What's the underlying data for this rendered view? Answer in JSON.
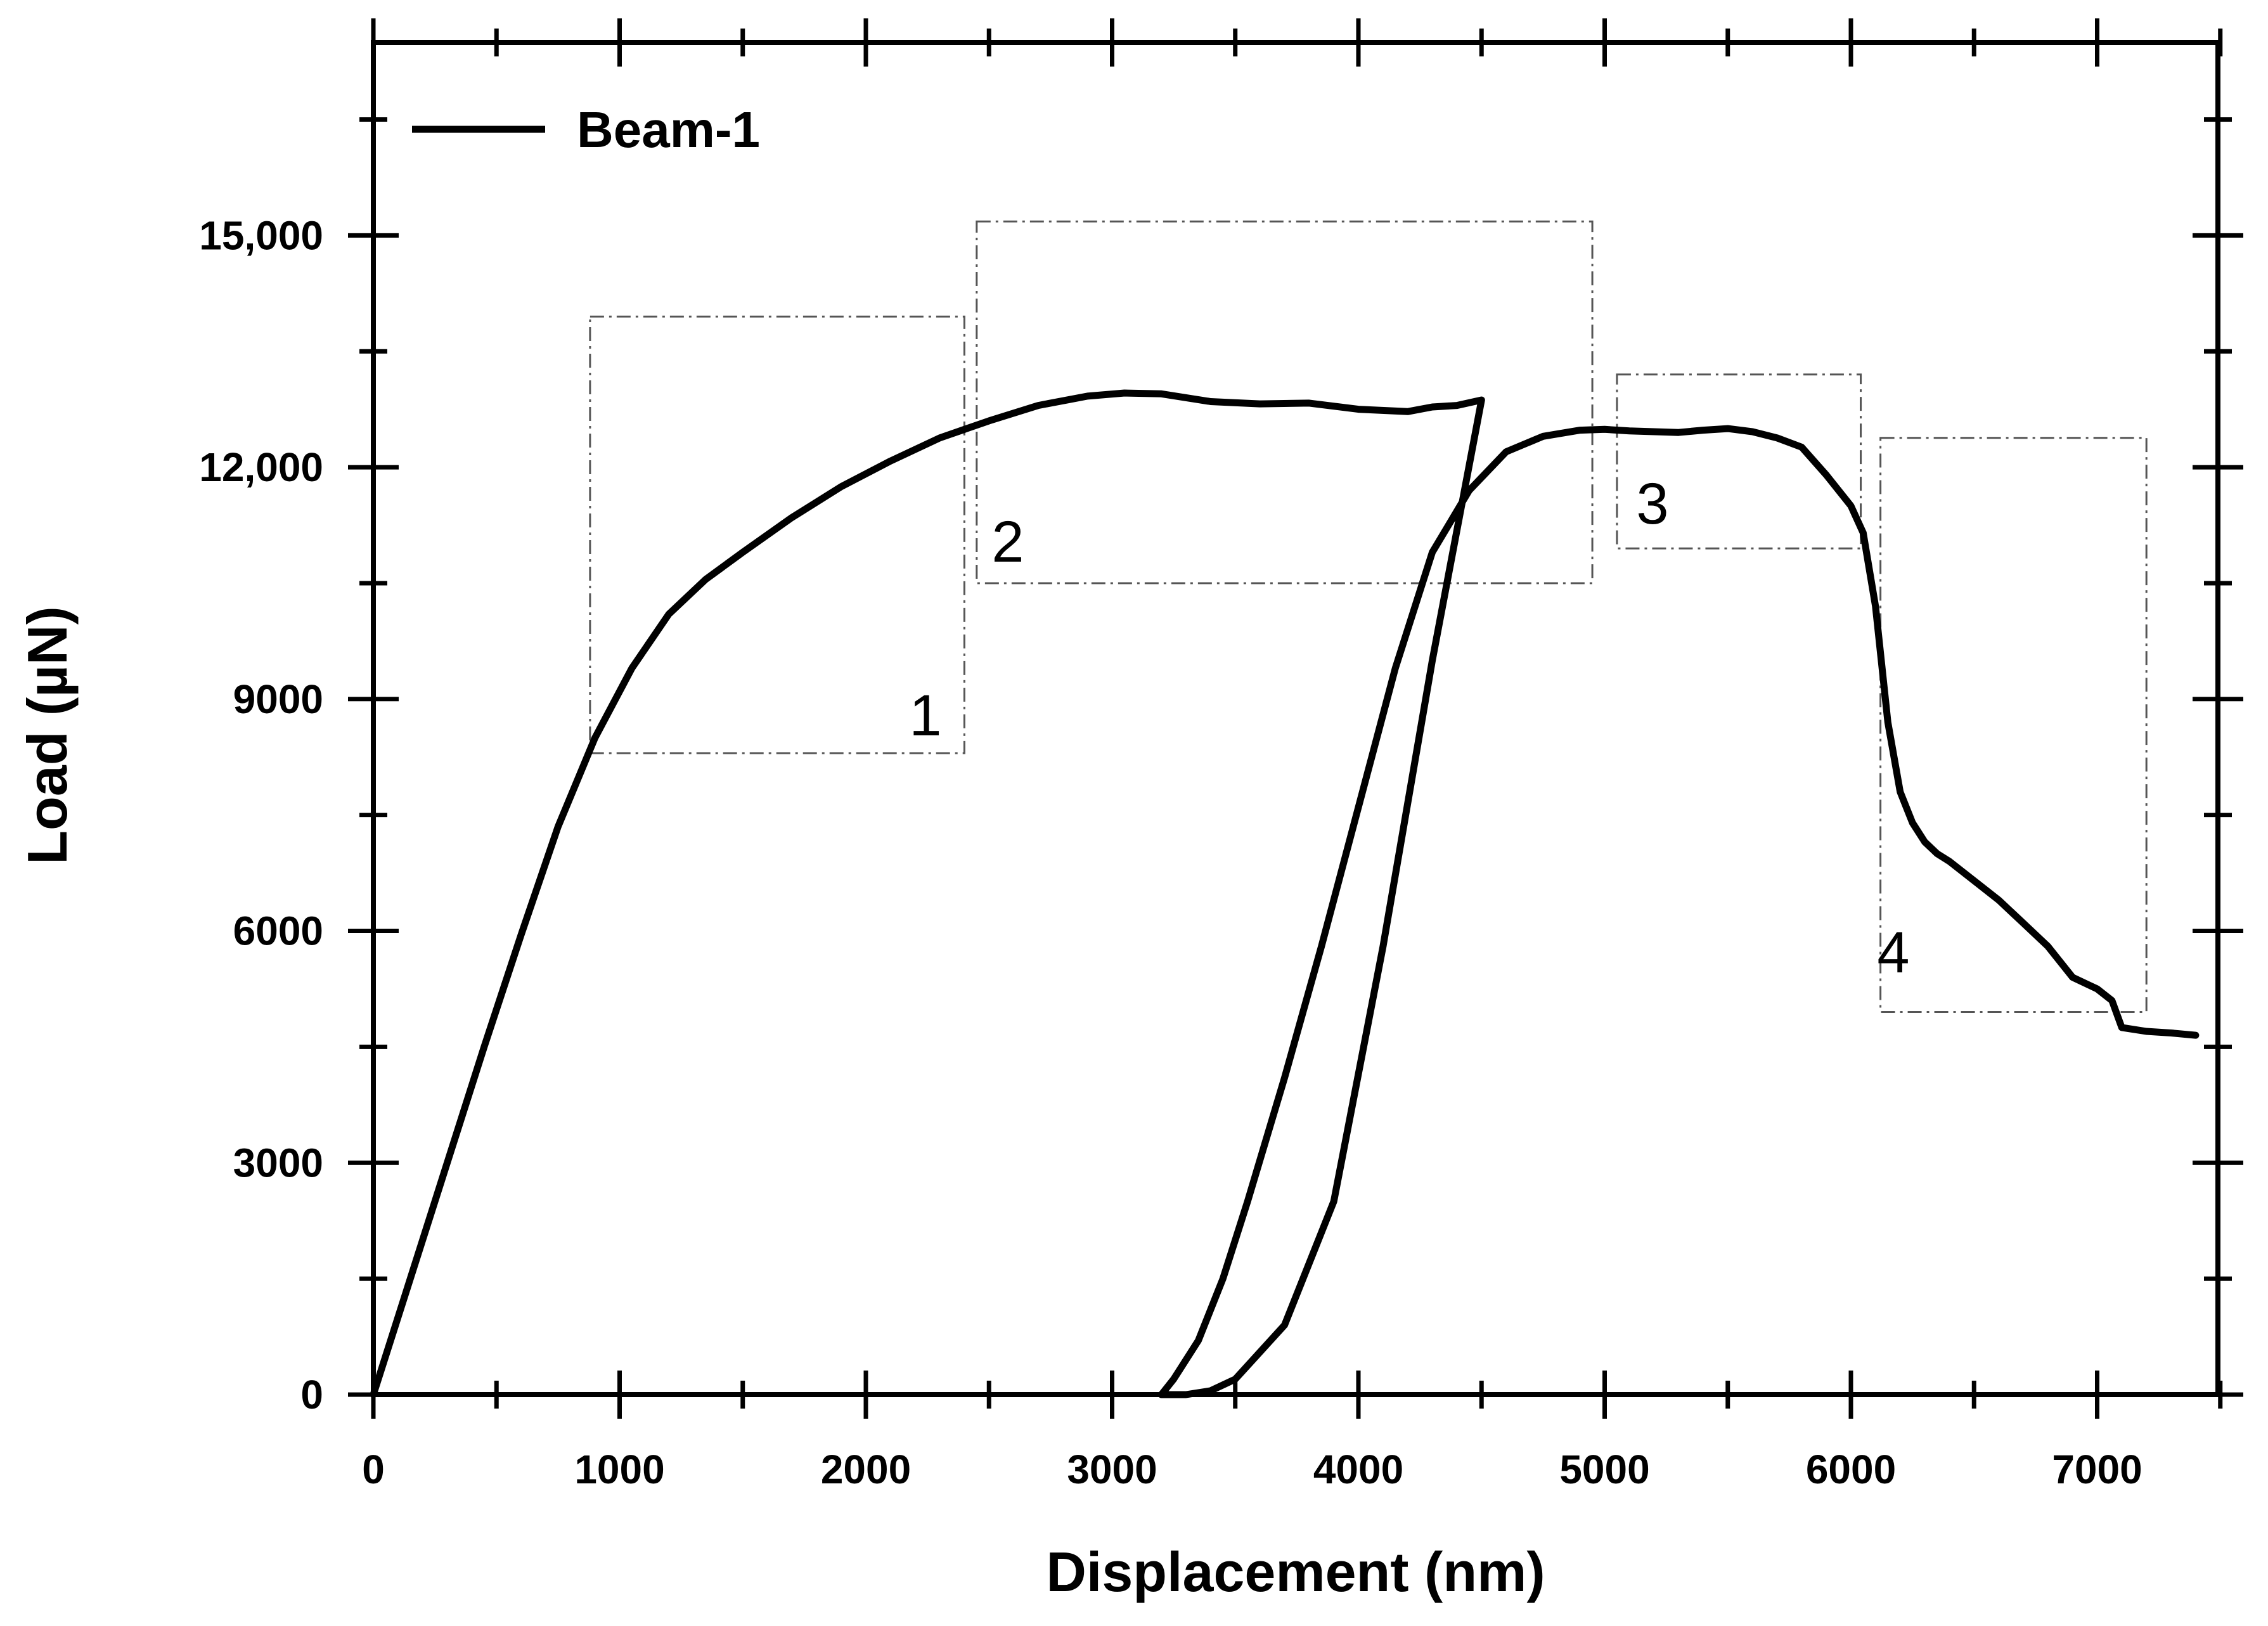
{
  "chart_data": {
    "type": "line",
    "xlabel": "Displacement (nm)",
    "ylabel": "Load (µN)",
    "xlim": [
      0,
      7600
    ],
    "ylim": [
      0,
      17500
    ],
    "x_ticks": [
      0,
      1000,
      2000,
      3000,
      4000,
      5000,
      6000,
      7000
    ],
    "x_tick_labels": [
      "0",
      "1000",
      "2000",
      "3000",
      "4000",
      "5000",
      "6000",
      "7000"
    ],
    "y_ticks": [
      0,
      3000,
      6000,
      9000,
      12000,
      15000
    ],
    "y_tick_labels": [
      "0",
      "3000",
      "6000",
      "9000",
      "12,000",
      "15,000"
    ],
    "legend": {
      "position": "top-left",
      "entries": [
        "Beam-1"
      ]
    },
    "series": [
      {
        "name": "Beam-1",
        "x": [
          0,
          150,
          300,
          450,
          600,
          750,
          900,
          1050,
          1200,
          1350,
          1500,
          1700,
          1900,
          2100,
          2300,
          2500,
          2700,
          2900,
          3050,
          3200,
          3400,
          3600,
          3800,
          4000,
          4200,
          4300,
          4400,
          4500,
          4300,
          4100,
          3900,
          3700,
          3500,
          3400,
          3300,
          3200,
          3250,
          3350,
          3450,
          3550,
          3700,
          3850,
          4000,
          4150,
          4300,
          4450,
          4600,
          4750,
          4900,
          5000,
          5100,
          5300,
          5400,
          5500,
          5600,
          5700,
          5800,
          5900,
          6000,
          6050,
          6100,
          6150,
          6200,
          6250,
          6300,
          6350,
          6400,
          6500,
          6600,
          6700,
          6800,
          6900,
          7000,
          7060,
          7100,
          7200,
          7300,
          7400
        ],
        "y": [
          0,
          1500,
          3000,
          4500,
          5950,
          7350,
          8500,
          9400,
          10100,
          10550,
          10900,
          11350,
          11750,
          12080,
          12380,
          12600,
          12800,
          12920,
          12960,
          12950,
          12850,
          12820,
          12830,
          12750,
          12720,
          12780,
          12800,
          12870,
          9500,
          5800,
          2500,
          900,
          200,
          50,
          0,
          0,
          200,
          700,
          1500,
          2500,
          4100,
          5800,
          7600,
          9400,
          10900,
          11700,
          12200,
          12400,
          12480,
          12490,
          12470,
          12450,
          12480,
          12500,
          12460,
          12380,
          12260,
          11900,
          11500,
          11150,
          10200,
          8700,
          7800,
          7400,
          7150,
          7000,
          6900,
          6650,
          6400,
          6100,
          5800,
          5400,
          5250,
          5100,
          4750,
          4700,
          4680,
          4650
        ]
      }
    ],
    "annotations": [
      {
        "label": "1",
        "x0": 880,
        "x1": 2400,
        "y0": 8300,
        "y1": 13950
      },
      {
        "label": "2",
        "x0": 2450,
        "x1": 4950,
        "y0": 10500,
        "y1": 15180
      },
      {
        "label": "3",
        "x0": 5050,
        "x1": 6040,
        "y0": 10950,
        "y1": 13200
      },
      {
        "label": "4",
        "x0": 6120,
        "x1": 7200,
        "y0": 4950,
        "y1": 12380
      }
    ]
  }
}
